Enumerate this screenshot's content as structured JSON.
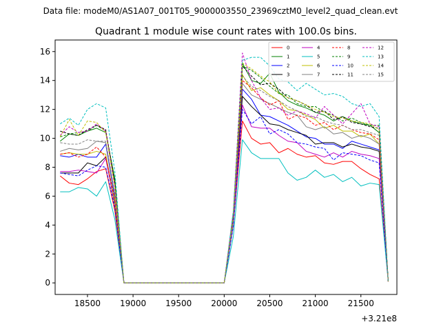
{
  "suptitle": "Data file: modeM0/AS1A07_001T05_9000003550_23969cztM0_level2_quad_clean.evt",
  "chart_data": {
    "type": "line",
    "title": "Quadrant 1 module wise count rates with 100.0s bins.",
    "xlabel": "",
    "ylabel": "",
    "x_offset_label": "+3.21e8",
    "xlim": [
      18145,
      21895
    ],
    "ylim": [
      -0.8,
      16.8
    ],
    "x_ticks": [
      18500,
      19000,
      19500,
      20000,
      20500,
      21000,
      21500
    ],
    "x_tick_labels": [
      "18500",
      "19000",
      "19500",
      "20000",
      "20500",
      "21000",
      "21500"
    ],
    "y_ticks": [
      0,
      2,
      4,
      6,
      8,
      10,
      12,
      14,
      16
    ],
    "y_tick_labels": [
      "0",
      "2",
      "4",
      "6",
      "8",
      "10",
      "12",
      "14",
      "16"
    ],
    "legend_position": "upper right",
    "x": [
      18200,
      18300,
      18400,
      18500,
      18600,
      18700,
      18800,
      18900,
      19000,
      19100,
      19200,
      19300,
      19400,
      19500,
      19600,
      19700,
      19800,
      19900,
      20000,
      20100,
      20200,
      20300,
      20400,
      20500,
      20600,
      20700,
      20800,
      20900,
      21000,
      21100,
      21200,
      21300,
      21400,
      21500,
      21600,
      21700,
      21800
    ],
    "series": [
      {
        "name": "0",
        "color": "#ff0000",
        "dash": "solid",
        "values": [
          7.4,
          6.9,
          6.8,
          7.2,
          7.7,
          7.9,
          5.0,
          0,
          0,
          0,
          0,
          0,
          0,
          0,
          0,
          0,
          0,
          0,
          0,
          4.0,
          11.2,
          10.0,
          9.6,
          9.7,
          9.0,
          9.3,
          8.9,
          8.7,
          8.8,
          8.3,
          8.2,
          8.4,
          8.4,
          7.9,
          7.5,
          7.2,
          0.1
        ]
      },
      {
        "name": "1",
        "color": "#008000",
        "dash": "solid",
        "values": [
          9.8,
          10.3,
          10.2,
          10.5,
          10.7,
          10.4,
          7.2,
          0,
          0,
          0,
          0,
          0,
          0,
          0,
          0,
          0,
          0,
          0,
          0,
          4.6,
          15.2,
          14.0,
          13.8,
          14.5,
          13.2,
          12.6,
          12.3,
          12.1,
          11.8,
          11.6,
          11.2,
          11.5,
          11.2,
          11.0,
          10.9,
          10.4,
          0.1
        ]
      },
      {
        "name": "2",
        "color": "#0000ff",
        "dash": "solid",
        "values": [
          8.8,
          8.7,
          8.9,
          8.7,
          8.7,
          9.6,
          5.9,
          0,
          0,
          0,
          0,
          0,
          0,
          0,
          0,
          0,
          0,
          0,
          0,
          4.2,
          13.4,
          12.7,
          11.6,
          11.5,
          11.2,
          10.9,
          10.5,
          10.1,
          10.0,
          9.6,
          9.6,
          9.3,
          9.8,
          9.6,
          9.4,
          9.2,
          0.1
        ]
      },
      {
        "name": "3",
        "color": "#000000",
        "dash": "solid",
        "values": [
          7.6,
          7.6,
          7.6,
          8.3,
          8.1,
          8.7,
          5.4,
          0,
          0,
          0,
          0,
          0,
          0,
          0,
          0,
          0,
          0,
          0,
          0,
          4.2,
          12.9,
          12.2,
          11.6,
          11.0,
          10.9,
          10.6,
          10.4,
          10.2,
          9.6,
          9.7,
          9.7,
          9.4,
          9.6,
          9.4,
          9.3,
          9.1,
          0.1
        ]
      },
      {
        "name": "4",
        "color": "#bf00bf",
        "dash": "solid",
        "values": [
          7.7,
          7.7,
          7.8,
          7.7,
          7.6,
          8.6,
          5.5,
          0,
          0,
          0,
          0,
          0,
          0,
          0,
          0,
          0,
          0,
          0,
          0,
          4.0,
          12.3,
          10.8,
          10.7,
          10.7,
          10.2,
          9.8,
          9.7,
          9.1,
          8.9,
          8.7,
          9.0,
          8.7,
          9.1,
          8.9,
          8.8,
          8.6,
          0.1
        ]
      },
      {
        "name": "5",
        "color": "#00bfbf",
        "dash": "solid",
        "values": [
          6.3,
          6.3,
          6.6,
          6.5,
          6.0,
          7.0,
          4.4,
          0,
          0,
          0,
          0,
          0,
          0,
          0,
          0,
          0,
          0,
          0,
          0,
          3.2,
          9.9,
          9.0,
          8.6,
          8.6,
          8.6,
          7.6,
          7.1,
          7.3,
          7.8,
          7.3,
          7.5,
          7.0,
          7.3,
          6.7,
          6.9,
          6.8,
          0.1
        ]
      },
      {
        "name": "6",
        "color": "#bfbf00",
        "dash": "solid",
        "values": [
          8.9,
          9.0,
          8.9,
          8.9,
          9.1,
          8.9,
          5.6,
          0,
          0,
          0,
          0,
          0,
          0,
          0,
          0,
          0,
          0,
          0,
          0,
          4.2,
          14.4,
          13.3,
          13.5,
          13.0,
          12.6,
          12.0,
          11.9,
          11.6,
          11.3,
          10.7,
          10.9,
          10.5,
          10.5,
          10.1,
          10.3,
          9.6,
          0.1
        ]
      },
      {
        "name": "7",
        "color": "#808080",
        "dash": "solid",
        "values": [
          9.1,
          9.3,
          9.2,
          9.3,
          9.8,
          9.7,
          6.1,
          0,
          0,
          0,
          0,
          0,
          0,
          0,
          0,
          0,
          0,
          0,
          0,
          4.3,
          13.8,
          13.0,
          12.7,
          12.4,
          12.1,
          11.8,
          11.6,
          10.8,
          10.6,
          10.8,
          10.3,
          10.4,
          10.0,
          10.2,
          10.0,
          9.6,
          0.1
        ]
      },
      {
        "name": "8",
        "color": "#ff0000",
        "dash": "dashed",
        "values": [
          8.9,
          9.0,
          8.7,
          8.9,
          9.4,
          8.7,
          5.8,
          0,
          0,
          0,
          0,
          0,
          0,
          0,
          0,
          0,
          0,
          0,
          0,
          4.5,
          14.0,
          13.5,
          12.8,
          12.3,
          12.6,
          11.3,
          11.6,
          11.4,
          10.9,
          11.1,
          10.6,
          10.9,
          10.6,
          10.4,
          10.3,
          9.9,
          0.1
        ]
      },
      {
        "name": "9",
        "color": "#008000",
        "dash": "dashed",
        "values": [
          10.1,
          10.3,
          10.4,
          10.5,
          10.9,
          10.5,
          7.0,
          0,
          0,
          0,
          0,
          0,
          0,
          0,
          0,
          0,
          0,
          0,
          0,
          4.8,
          15.0,
          14.7,
          14.2,
          13.6,
          13.1,
          13.0,
          12.4,
          12.2,
          12.2,
          11.8,
          11.6,
          11.2,
          11.4,
          11.1,
          10.9,
          10.9,
          0.1
        ]
      },
      {
        "name": "10",
        "color": "#0000ff",
        "dash": "dashed",
        "values": [
          7.6,
          7.5,
          7.4,
          7.8,
          8.1,
          8.0,
          5.2,
          0,
          0,
          0,
          0,
          0,
          0,
          0,
          0,
          0,
          0,
          0,
          0,
          3.9,
          12.0,
          11.0,
          11.5,
          10.3,
          10.6,
          10.3,
          9.7,
          9.6,
          9.4,
          9.3,
          8.5,
          9.0,
          8.9,
          8.8,
          8.5,
          8.3,
          0.1
        ]
      },
      {
        "name": "11",
        "color": "#000000",
        "dash": "dashed",
        "values": [
          10.5,
          10.3,
          10.2,
          10.6,
          10.9,
          10.6,
          6.9,
          0,
          0,
          0,
          0,
          0,
          0,
          0,
          0,
          0,
          0,
          0,
          0,
          4.7,
          15.0,
          14.3,
          13.7,
          13.8,
          13.4,
          12.8,
          12.6,
          12.3,
          11.8,
          11.9,
          11.3,
          11.5,
          11.1,
          11.0,
          10.8,
          10.7,
          0.1
        ]
      },
      {
        "name": "12",
        "color": "#bf00bf",
        "dash": "dashed",
        "values": [
          10.2,
          10.8,
          10.4,
          10.5,
          11.0,
          10.5,
          6.7,
          0,
          0,
          0,
          0,
          0,
          0,
          0,
          0,
          0,
          0,
          0,
          0,
          4.9,
          15.9,
          14.0,
          12.8,
          12.0,
          12.1,
          11.6,
          11.9,
          11.7,
          11.4,
          12.2,
          11.6,
          11.0,
          11.7,
          12.4,
          11.0,
          10.8,
          0.1
        ]
      },
      {
        "name": "13",
        "color": "#00bfbf",
        "dash": "dashed",
        "values": [
          11.0,
          11.4,
          10.9,
          12.0,
          12.4,
          12.1,
          7.7,
          0,
          0,
          0,
          0,
          0,
          0,
          0,
          0,
          0,
          0,
          0,
          0,
          5.0,
          15.4,
          15.6,
          15.6,
          15.0,
          14.1,
          13.9,
          13.3,
          13.8,
          13.4,
          13.0,
          13.1,
          12.9,
          12.4,
          12.2,
          12.4,
          11.5,
          0.1
        ]
      },
      {
        "name": "14",
        "color": "#bfbf00",
        "dash": "dashed",
        "values": [
          10.1,
          11.3,
          10.2,
          11.2,
          11.1,
          10.4,
          6.7,
          0,
          0,
          0,
          0,
          0,
          0,
          0,
          0,
          0,
          0,
          0,
          0,
          4.6,
          15.2,
          14.8,
          14.3,
          13.9,
          13.1,
          12.8,
          12.6,
          12.3,
          12.0,
          11.8,
          11.5,
          11.4,
          11.2,
          11.1,
          11.0,
          10.6,
          0.1
        ]
      },
      {
        "name": "15",
        "color": "#808080",
        "dash": "dashed",
        "values": [
          9.7,
          9.6,
          9.6,
          9.9,
          9.8,
          9.8,
          6.2,
          0,
          0,
          0,
          0,
          0,
          0,
          0,
          0,
          0,
          0,
          0,
          0,
          4.4,
          14.3,
          13.6,
          13.3,
          12.9,
          12.6,
          12.2,
          11.9,
          11.5,
          11.5,
          11.2,
          11.0,
          10.9,
          10.6,
          10.6,
          10.4,
          10.2,
          0.1
        ]
      }
    ]
  }
}
